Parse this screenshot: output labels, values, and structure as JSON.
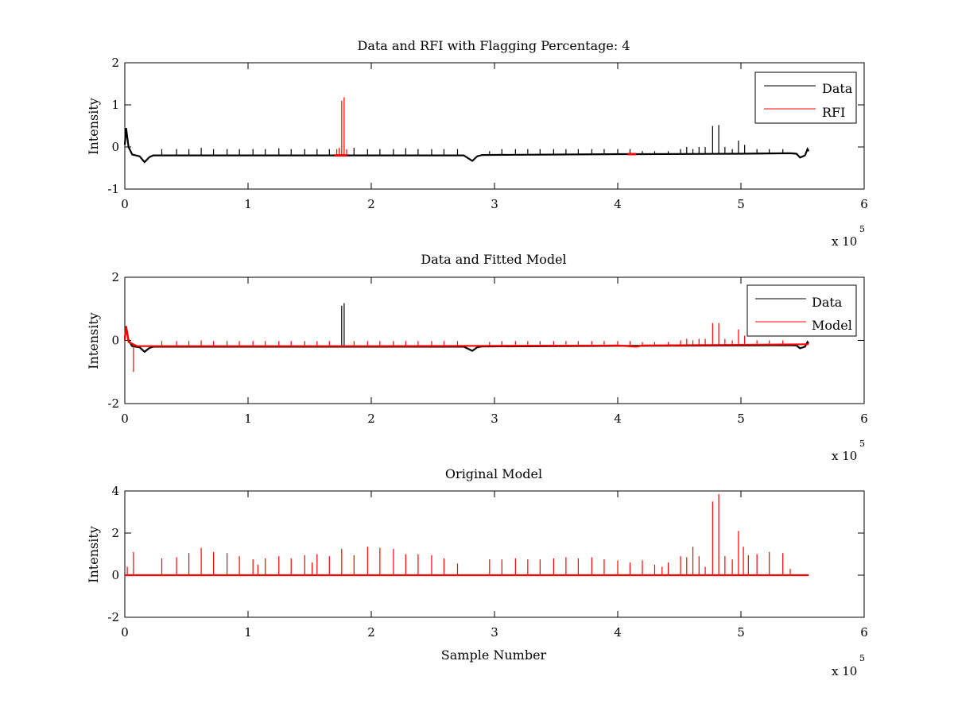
{
  "chart_data": [
    {
      "type": "line",
      "title": "Data and RFI with Flagging Percentage: 4",
      "xlabel": "",
      "ylabel": "Intensity",
      "xlim": [
        0,
        6
      ],
      "ylim": [
        -1,
        2
      ],
      "xticks": [
        "0",
        "1",
        "2",
        "3",
        "4",
        "5",
        "6"
      ],
      "yticks": [
        "-1",
        "0",
        "1",
        "2"
      ],
      "x_multiplier": "x 10",
      "x_multiplier_exponent": "5",
      "legend": {
        "position": "top-right",
        "entries": [
          {
            "label": "Data",
            "color": "#000000"
          },
          {
            "label": "RFI",
            "color": "#ff0000"
          }
        ]
      },
      "series": [
        {
          "name": "Data",
          "color": "#000000",
          "baseline": [
            [
              0.0,
              0.05
            ],
            [
              0.01,
              0.45
            ],
            [
              0.03,
              0.0
            ],
            [
              0.06,
              -0.18
            ],
            [
              0.12,
              -0.22
            ],
            [
              0.16,
              -0.36
            ],
            [
              0.2,
              -0.24
            ],
            [
              0.23,
              -0.2
            ],
            [
              1.0,
              -0.2
            ],
            [
              2.0,
              -0.2
            ],
            [
              2.75,
              -0.2
            ],
            [
              2.82,
              -0.33
            ],
            [
              2.86,
              -0.22
            ],
            [
              2.9,
              -0.19
            ],
            [
              4.0,
              -0.17
            ],
            [
              4.2,
              -0.17
            ],
            [
              5.0,
              -0.16
            ],
            [
              5.4,
              -0.15
            ],
            [
              5.45,
              -0.16
            ],
            [
              5.48,
              -0.25
            ],
            [
              5.52,
              -0.2
            ],
            [
              5.54,
              -0.05
            ],
            [
              5.55,
              -0.1
            ]
          ],
          "spikes": [
            [
              0.3,
              -0.05
            ],
            [
              0.42,
              -0.05
            ],
            [
              0.52,
              -0.05
            ],
            [
              0.62,
              -0.02
            ],
            [
              0.72,
              -0.05
            ],
            [
              0.83,
              -0.05
            ],
            [
              0.93,
              -0.05
            ],
            [
              1.04,
              -0.05
            ],
            [
              1.14,
              -0.05
            ],
            [
              1.25,
              -0.03
            ],
            [
              1.35,
              -0.05
            ],
            [
              1.46,
              -0.05
            ],
            [
              1.56,
              -0.05
            ],
            [
              1.66,
              -0.05
            ],
            [
              1.86,
              -0.02
            ],
            [
              1.97,
              -0.05
            ],
            [
              2.07,
              -0.05
            ],
            [
              2.18,
              -0.05
            ],
            [
              2.28,
              -0.03
            ],
            [
              2.38,
              -0.05
            ],
            [
              2.49,
              -0.05
            ],
            [
              2.59,
              -0.05
            ],
            [
              2.7,
              -0.05
            ],
            [
              2.96,
              -0.1
            ],
            [
              3.06,
              -0.05
            ],
            [
              3.17,
              -0.05
            ],
            [
              3.27,
              -0.05
            ],
            [
              3.37,
              -0.05
            ],
            [
              3.48,
              -0.05
            ],
            [
              3.58,
              -0.05
            ],
            [
              3.68,
              -0.05
            ],
            [
              3.79,
              -0.05
            ],
            [
              3.89,
              -0.05
            ],
            [
              4.0,
              -0.05
            ],
            [
              4.1,
              -0.05
            ],
            [
              4.2,
              -0.1
            ],
            [
              4.3,
              -0.1
            ],
            [
              4.41,
              -0.1
            ],
            [
              4.51,
              -0.05
            ],
            [
              4.56,
              0.0
            ],
            [
              4.61,
              -0.05
            ],
            [
              4.66,
              0.0
            ],
            [
              4.71,
              0.0
            ],
            [
              4.77,
              0.5
            ],
            [
              4.82,
              0.52
            ],
            [
              4.87,
              0.0
            ],
            [
              4.93,
              -0.05
            ],
            [
              4.98,
              0.15
            ],
            [
              5.03,
              0.05
            ],
            [
              5.13,
              -0.05
            ],
            [
              5.23,
              -0.05
            ],
            [
              5.34,
              -0.05
            ]
          ]
        },
        {
          "name": "RFI",
          "color": "#ff0000",
          "segments": [
            [
              1.7,
              1.8,
              -0.2
            ],
            [
              4.08,
              4.15,
              -0.17
            ]
          ],
          "spikes": [
            [
              1.72,
              -0.05
            ],
            [
              1.76,
              1.1
            ],
            [
              1.78,
              1.18
            ],
            [
              1.74,
              -0.02
            ],
            [
              1.8,
              -0.05
            ]
          ]
        }
      ]
    },
    {
      "type": "line",
      "title": "Data and Fitted Model",
      "xlabel": "",
      "ylabel": "Intensity",
      "xlim": [
        0,
        6
      ],
      "ylim": [
        -2,
        2
      ],
      "xticks": [
        "0",
        "1",
        "2",
        "3",
        "4",
        "5",
        "6"
      ],
      "yticks": [
        "-2",
        "0",
        "2"
      ],
      "x_multiplier": "x 10",
      "x_multiplier_exponent": "5",
      "legend": {
        "position": "top-right",
        "entries": [
          {
            "label": "Data",
            "color": "#000000"
          },
          {
            "label": "Model",
            "color": "#ff0000"
          }
        ]
      },
      "series": [
        {
          "name": "Data",
          "color": "#000000",
          "baseline": [
            [
              0.0,
              0.05
            ],
            [
              0.01,
              0.45
            ],
            [
              0.03,
              0.0
            ],
            [
              0.06,
              -0.18
            ],
            [
              0.12,
              -0.22
            ],
            [
              0.16,
              -0.36
            ],
            [
              0.2,
              -0.24
            ],
            [
              0.23,
              -0.2
            ],
            [
              1.0,
              -0.2
            ],
            [
              2.0,
              -0.2
            ],
            [
              2.75,
              -0.2
            ],
            [
              2.82,
              -0.33
            ],
            [
              2.86,
              -0.22
            ],
            [
              2.9,
              -0.19
            ],
            [
              4.0,
              -0.17
            ],
            [
              4.2,
              -0.17
            ],
            [
              5.0,
              -0.16
            ],
            [
              5.4,
              -0.15
            ],
            [
              5.45,
              -0.16
            ],
            [
              5.48,
              -0.25
            ],
            [
              5.52,
              -0.2
            ],
            [
              5.54,
              -0.05
            ],
            [
              5.55,
              -0.1
            ]
          ],
          "spikes": [
            [
              1.76,
              1.1
            ],
            [
              1.78,
              1.18
            ]
          ]
        },
        {
          "name": "Model",
          "color": "#ff0000",
          "baseline": [
            [
              0.0,
              0.0
            ],
            [
              0.01,
              0.45
            ],
            [
              0.03,
              -0.05
            ],
            [
              0.1,
              -0.18
            ],
            [
              1.0,
              -0.18
            ],
            [
              2.0,
              -0.18
            ],
            [
              3.0,
              -0.17
            ],
            [
              4.0,
              -0.16
            ],
            [
              4.15,
              -0.2
            ],
            [
              4.2,
              -0.16
            ],
            [
              5.0,
              -0.14
            ],
            [
              5.55,
              -0.12
            ]
          ],
          "spikes": [
            [
              0.07,
              -1.0
            ],
            [
              0.3,
              -0.02
            ],
            [
              0.42,
              -0.02
            ],
            [
              0.52,
              -0.02
            ],
            [
              0.62,
              0.0
            ],
            [
              0.72,
              -0.02
            ],
            [
              0.83,
              -0.02
            ],
            [
              0.93,
              -0.02
            ],
            [
              1.04,
              -0.02
            ],
            [
              1.14,
              -0.02
            ],
            [
              1.25,
              -0.02
            ],
            [
              1.35,
              -0.02
            ],
            [
              1.46,
              -0.02
            ],
            [
              1.56,
              -0.02
            ],
            [
              1.66,
              -0.02
            ],
            [
              1.86,
              -0.02
            ],
            [
              1.97,
              -0.02
            ],
            [
              2.07,
              -0.02
            ],
            [
              2.18,
              -0.02
            ],
            [
              2.28,
              -0.02
            ],
            [
              2.38,
              -0.02
            ],
            [
              2.49,
              -0.02
            ],
            [
              2.59,
              -0.02
            ],
            [
              2.7,
              -0.02
            ],
            [
              2.96,
              -0.05
            ],
            [
              3.06,
              -0.02
            ],
            [
              3.17,
              -0.02
            ],
            [
              3.27,
              -0.02
            ],
            [
              3.37,
              -0.02
            ],
            [
              3.48,
              -0.02
            ],
            [
              3.58,
              -0.02
            ],
            [
              3.68,
              -0.02
            ],
            [
              3.79,
              -0.02
            ],
            [
              3.89,
              -0.02
            ],
            [
              4.0,
              -0.02
            ],
            [
              4.1,
              -0.02
            ],
            [
              4.2,
              -0.05
            ],
            [
              4.3,
              -0.05
            ],
            [
              4.41,
              -0.05
            ],
            [
              4.51,
              0.0
            ],
            [
              4.56,
              0.05
            ],
            [
              4.61,
              0.0
            ],
            [
              4.66,
              0.05
            ],
            [
              4.71,
              0.05
            ],
            [
              4.77,
              0.55
            ],
            [
              4.82,
              0.55
            ],
            [
              4.87,
              0.05
            ],
            [
              4.93,
              0.0
            ],
            [
              4.98,
              0.35
            ],
            [
              5.03,
              0.15
            ],
            [
              5.13,
              0.0
            ],
            [
              5.23,
              0.0
            ],
            [
              5.34,
              0.0
            ]
          ]
        }
      ]
    },
    {
      "type": "line",
      "title": "Original Model",
      "xlabel": "Sample Number",
      "ylabel": "Intensity",
      "xlim": [
        0,
        6
      ],
      "ylim": [
        -2,
        4
      ],
      "xticks": [
        "0",
        "1",
        "2",
        "3",
        "4",
        "5",
        "6"
      ],
      "yticks": [
        "-2",
        "0",
        "2",
        "4"
      ],
      "x_multiplier": "x 10",
      "x_multiplier_exponent": "5",
      "series": [
        {
          "name": "Original Model",
          "color": "#ff0000",
          "baseline": [
            [
              0.0,
              0.0
            ],
            [
              5.55,
              0.0
            ]
          ],
          "spikes": [
            [
              0.02,
              0.4
            ],
            [
              0.07,
              1.1
            ],
            [
              0.3,
              0.8
            ],
            [
              0.42,
              0.85
            ],
            [
              0.52,
              1.05
            ],
            [
              0.62,
              1.3
            ],
            [
              0.72,
              1.1
            ],
            [
              0.83,
              1.05
            ],
            [
              0.93,
              0.9
            ],
            [
              1.04,
              0.75
            ],
            [
              1.08,
              0.5
            ],
            [
              1.14,
              0.8
            ],
            [
              1.25,
              0.9
            ],
            [
              1.35,
              0.8
            ],
            [
              1.46,
              0.95
            ],
            [
              1.52,
              0.6
            ],
            [
              1.56,
              1.0
            ],
            [
              1.66,
              0.9
            ],
            [
              1.76,
              1.25
            ],
            [
              1.86,
              0.95
            ],
            [
              1.97,
              1.35
            ],
            [
              2.07,
              1.3
            ],
            [
              2.18,
              1.25
            ],
            [
              2.28,
              1.0
            ],
            [
              2.38,
              1.0
            ],
            [
              2.49,
              0.95
            ],
            [
              2.59,
              0.8
            ],
            [
              2.7,
              0.55
            ],
            [
              2.96,
              0.75
            ],
            [
              3.06,
              0.75
            ],
            [
              3.17,
              0.8
            ],
            [
              3.27,
              0.75
            ],
            [
              3.37,
              0.75
            ],
            [
              3.48,
              0.8
            ],
            [
              3.58,
              0.85
            ],
            [
              3.68,
              0.8
            ],
            [
              3.79,
              0.85
            ],
            [
              3.89,
              0.75
            ],
            [
              4.0,
              0.7
            ],
            [
              4.1,
              0.6
            ],
            [
              4.2,
              0.7
            ],
            [
              4.3,
              0.5
            ],
            [
              4.36,
              0.4
            ],
            [
              4.41,
              0.6
            ],
            [
              4.51,
              0.9
            ],
            [
              4.56,
              0.85
            ],
            [
              4.61,
              1.35
            ],
            [
              4.66,
              0.9
            ],
            [
              4.71,
              0.4
            ],
            [
              4.77,
              3.5
            ],
            [
              4.82,
              3.85
            ],
            [
              4.87,
              0.9
            ],
            [
              4.93,
              0.75
            ],
            [
              4.98,
              2.1
            ],
            [
              5.02,
              1.35
            ],
            [
              5.06,
              0.95
            ],
            [
              5.13,
              1.0
            ],
            [
              5.23,
              1.1
            ],
            [
              5.34,
              1.05
            ],
            [
              5.4,
              0.3
            ]
          ]
        }
      ]
    }
  ]
}
